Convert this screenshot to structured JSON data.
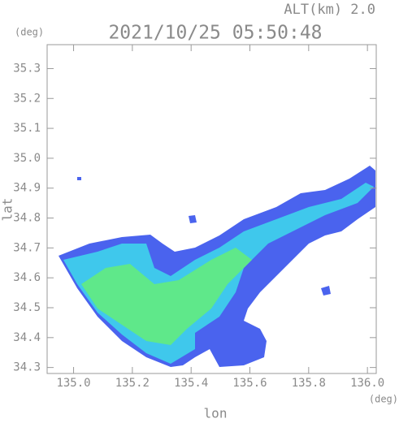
{
  "chart_data": {
    "type": "radar-map",
    "title": "2021/10/25 05:50:48",
    "subtitle": "ALT(km) 2.0",
    "y_unit": "(deg)",
    "x_unit": "(deg)",
    "ylabel": "lat",
    "xlabel": "lon",
    "xlim": [
      134.91,
      136.03
    ],
    "ylim": [
      34.28,
      35.38
    ],
    "xticks": [
      {
        "value": 135.0,
        "label": "135.0"
      },
      135.2,
      135.4,
      135.6,
      135.8,
      {
        "value": 136.0,
        "label": "136.0"
      }
    ],
    "yticks": [
      34.3,
      34.4,
      34.5,
      34.6,
      34.7,
      34.8,
      34.9,
      {
        "value": 35.0,
        "label": "35.0"
      },
      35.1,
      35.2,
      35.3
    ]
  }
}
